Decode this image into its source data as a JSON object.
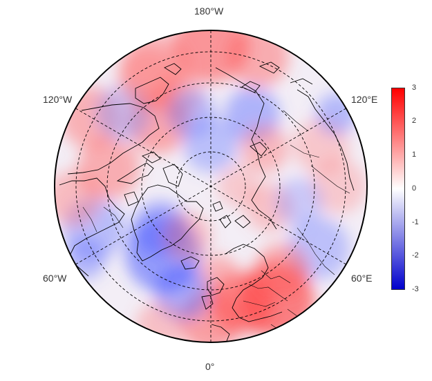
{
  "map": {
    "projection": "north polar stereographic",
    "meridian_labels": {
      "top": "180°W",
      "bottom": "0°",
      "upper_left": "120°W",
      "upper_right": "120°E",
      "lower_left": "60°W",
      "lower_right": "60°E"
    },
    "graticule_style": "dashed",
    "features": [
      "anomaly-field",
      "coastlines",
      "country-borders",
      "latitude-circles",
      "meridians"
    ],
    "notable_regions": {
      "warm": [
        "Europe",
        "Bering Sea",
        "Kara Sea",
        "North Pacific"
      ],
      "cold": [
        "Greenland",
        "Central Arctic",
        "Labrador Sea",
        "Eastern Siberia"
      ]
    }
  },
  "colorbar": {
    "ticks": [
      "3",
      "2",
      "1",
      "0",
      "-1",
      "-2",
      "-3"
    ],
    "min": -3,
    "max": 3,
    "colors": {
      "low": "#0000cc",
      "mid": "#ffffff",
      "high": "#ff0000"
    }
  }
}
